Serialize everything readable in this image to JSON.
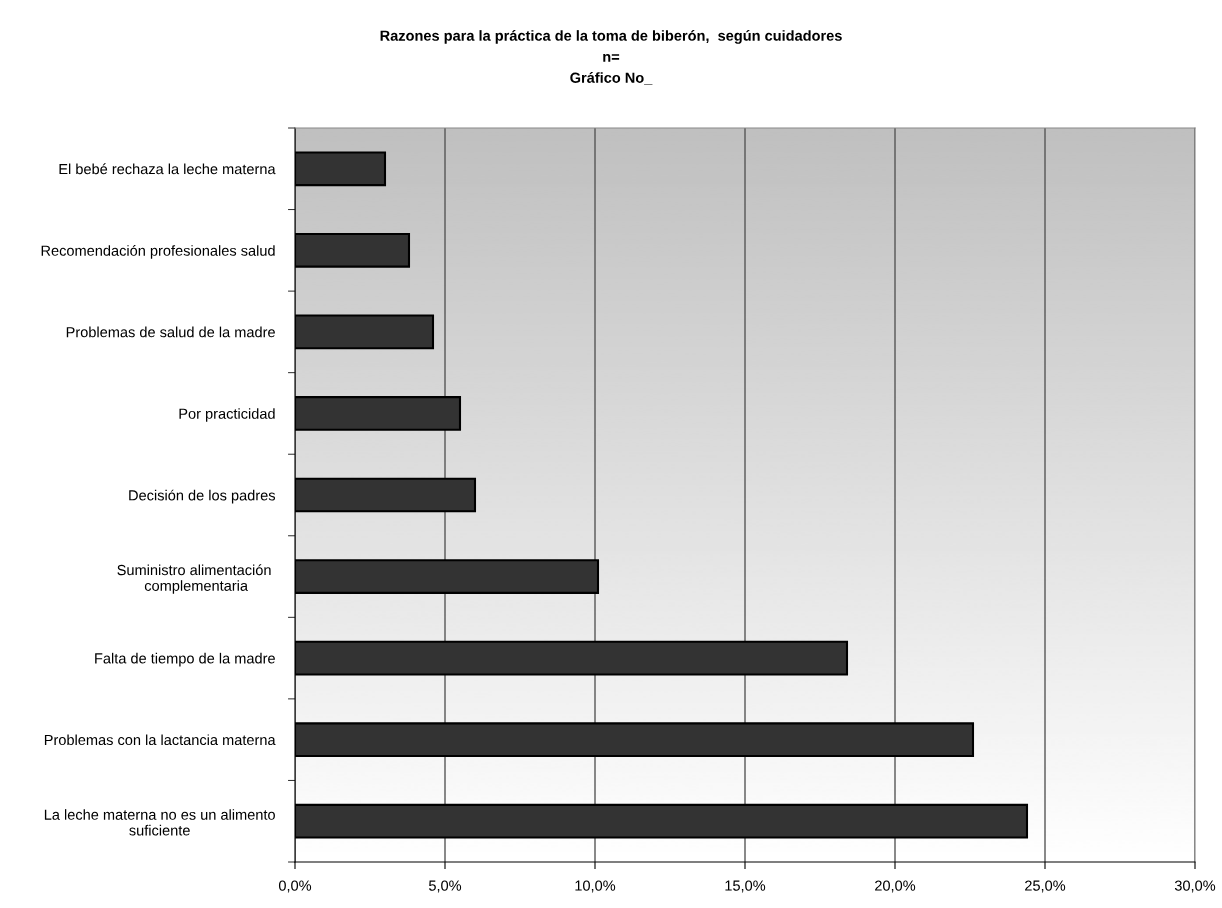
{
  "chart_data": {
    "type": "bar",
    "orientation": "horizontal",
    "title": "Razones para la práctica de la toma de biberón,  según cuidadores\nn=\nGráfico No_",
    "categories": [
      "El bebé rechaza la leche materna",
      "Recomendación profesionales salud",
      "Problemas de salud de la madre",
      "Por practicidad",
      "Decisión de los padres",
      "Suministro alimentación \ncomplementaria",
      "Falta de tiempo de la madre",
      "Problemas con la lactancia materna",
      "La leche materna no es un alimento\nsuficiente"
    ],
    "values": [
      3.0,
      3.8,
      4.6,
      5.5,
      6.0,
      10.1,
      18.4,
      22.6,
      24.4
    ],
    "color": "#333333",
    "xlim": [
      0,
      30
    ],
    "xticks": [
      {
        "value": 0,
        "label": "0,0%"
      },
      {
        "value": 5,
        "label": "5,0%"
      },
      {
        "value": 10,
        "label": "10,0%"
      },
      {
        "value": 15,
        "label": "15,0%"
      },
      {
        "value": 20,
        "label": "20,0%"
      },
      {
        "value": 25,
        "label": "25,0%"
      },
      {
        "value": 30,
        "label": "30,0%"
      }
    ],
    "grid": "x",
    "legend": false
  }
}
